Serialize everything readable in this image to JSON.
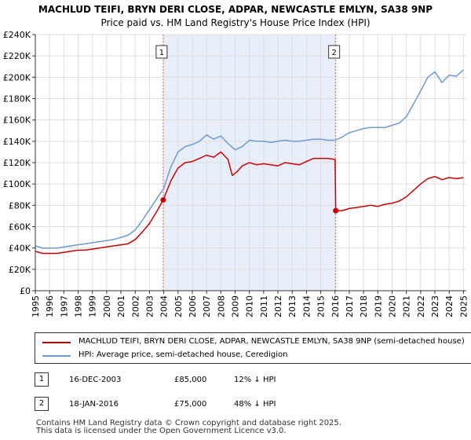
{
  "chart_data": {
    "type": "line",
    "title": "MACHLUD TEIFI, BRYN DERI CLOSE, ADPAR, NEWCASTLE EMLYN, SA38 9NP",
    "subtitle": "Price paid vs. HM Land Registry's House Price Index (HPI)",
    "xlabel": "",
    "ylabel": "",
    "xlim": [
      1995,
      2025.2
    ],
    "ylim": [
      0,
      240000
    ],
    "x_ticks": [
      1995,
      1996,
      1997,
      1998,
      1999,
      2000,
      2001,
      2002,
      2003,
      2004,
      2005,
      2006,
      2007,
      2008,
      2009,
      2010,
      2011,
      2012,
      2013,
      2014,
      2015,
      2016,
      2017,
      2018,
      2019,
      2020,
      2021,
      2022,
      2023,
      2024,
      2025
    ],
    "y_ticks": [
      0,
      20000,
      40000,
      60000,
      80000,
      100000,
      120000,
      140000,
      160000,
      180000,
      200000,
      220000,
      240000
    ],
    "y_tick_labels": [
      "£0",
      "£20K",
      "£40K",
      "£60K",
      "£80K",
      "£100K",
      "£120K",
      "£140K",
      "£160K",
      "£180K",
      "£200K",
      "£220K",
      "£240K"
    ],
    "grid": true,
    "series": [
      {
        "name": "MACHLUD TEIFI, BRYN DERI CLOSE, ADPAR, NEWCASTLE EMLYN, SA38 9NP (semi-detached house)",
        "color": "#cc0000",
        "x": [
          1995.0,
          1995.5,
          1996.0,
          1996.5,
          1997.0,
          1997.5,
          1998.0,
          1998.5,
          1999.0,
          1999.5,
          2000.0,
          2000.5,
          2001.0,
          2001.5,
          2002.0,
          2002.5,
          2003.0,
          2003.5,
          2003.96,
          2004.5,
          2005.0,
          2005.5,
          2006.0,
          2006.5,
          2007.0,
          2007.5,
          2008.0,
          2008.5,
          2008.8,
          2009.1,
          2009.5,
          2010.0,
          2010.5,
          2011.0,
          2011.5,
          2012.0,
          2012.5,
          2013.0,
          2013.5,
          2014.0,
          2014.5,
          2015.0,
          2015.5,
          2016.0,
          2016.05,
          2016.5,
          2017.0,
          2017.5,
          2018.0,
          2018.5,
          2019.0,
          2019.5,
          2020.0,
          2020.5,
          2021.0,
          2021.5,
          2022.0,
          2022.5,
          2023.0,
          2023.5,
          2024.0,
          2024.5,
          2025.0
        ],
        "values": [
          37000,
          35000,
          35000,
          35000,
          36000,
          37000,
          38000,
          38000,
          39000,
          40000,
          41000,
          42000,
          43000,
          44000,
          48000,
          55000,
          63000,
          74000,
          85000,
          103000,
          115000,
          120000,
          121000,
          124000,
          127000,
          125000,
          130000,
          123000,
          108000,
          111000,
          117000,
          120000,
          118000,
          119000,
          118000,
          117000,
          120000,
          119000,
          118000,
          121000,
          124000,
          124000,
          124000,
          123000,
          75000,
          75000,
          77000,
          78000,
          79000,
          80000,
          79000,
          81000,
          82000,
          84000,
          88000,
          94000,
          100000,
          105000,
          107000,
          104000,
          106000,
          105000,
          106000
        ]
      },
      {
        "name": "HPI: Average price, semi-detached house, Ceredigion",
        "color": "#6b9bd2",
        "x": [
          1995.0,
          1995.5,
          1996.0,
          1996.5,
          1997.0,
          1997.5,
          1998.0,
          1998.5,
          1999.0,
          1999.5,
          2000.0,
          2000.5,
          2001.0,
          2001.5,
          2002.0,
          2002.5,
          2003.0,
          2003.5,
          2004.0,
          2004.5,
          2005.0,
          2005.5,
          2006.0,
          2006.5,
          2007.0,
          2007.5,
          2008.0,
          2008.5,
          2009.0,
          2009.5,
          2010.0,
          2010.5,
          2011.0,
          2011.5,
          2012.0,
          2012.5,
          2013.0,
          2013.5,
          2014.0,
          2014.5,
          2015.0,
          2015.5,
          2016.0,
          2016.5,
          2017.0,
          2017.5,
          2018.0,
          2018.5,
          2019.0,
          2019.5,
          2020.0,
          2020.5,
          2021.0,
          2021.5,
          2022.0,
          2022.5,
          2023.0,
          2023.5,
          2024.0,
          2024.5,
          2025.0
        ],
        "values": [
          42000,
          40000,
          40000,
          40000,
          41000,
          42000,
          43000,
          44000,
          45000,
          46000,
          47000,
          48000,
          50000,
          52000,
          57000,
          66000,
          76000,
          86000,
          96000,
          116000,
          130000,
          135000,
          137000,
          140000,
          146000,
          142000,
          145000,
          138000,
          132000,
          135000,
          141000,
          140000,
          140000,
          139000,
          140000,
          141000,
          140000,
          140000,
          141000,
          142000,
          142000,
          141000,
          141000,
          144000,
          148000,
          150000,
          152000,
          153000,
          153000,
          153000,
          155000,
          157000,
          163000,
          175000,
          187000,
          200000,
          205000,
          195000,
          202000,
          201000,
          207000
        ]
      }
    ],
    "sales": [
      {
        "label": "1",
        "x": 2003.96,
        "value": 85000
      },
      {
        "label": "2",
        "x": 2016.05,
        "value": 75000
      }
    ]
  },
  "legend": {
    "property_label": "MACHLUD TEIFI, BRYN DERI CLOSE, ADPAR, NEWCASTLE EMLYN, SA38 9NP (semi-detached house)",
    "hpi_label": "HPI: Average price, semi-detached house, Ceredigion"
  },
  "sales_table": [
    {
      "num": "1",
      "date": "16-DEC-2003",
      "price": "£85,000",
      "hpi": "12% ↓ HPI"
    },
    {
      "num": "2",
      "date": "18-JAN-2016",
      "price": "£75,000",
      "hpi": "48% ↓ HPI"
    }
  ],
  "footer": {
    "line1": "Contains HM Land Registry data © Crown copyright and database right 2025.",
    "line2": "This data is licensed under the Open Government Licence v3.0."
  },
  "colors": {
    "property": "#cc0000",
    "hpi": "#6b9bd2",
    "shade": "#e8eef9",
    "grid": "#dddddd",
    "marker_line": "#e06666"
  }
}
